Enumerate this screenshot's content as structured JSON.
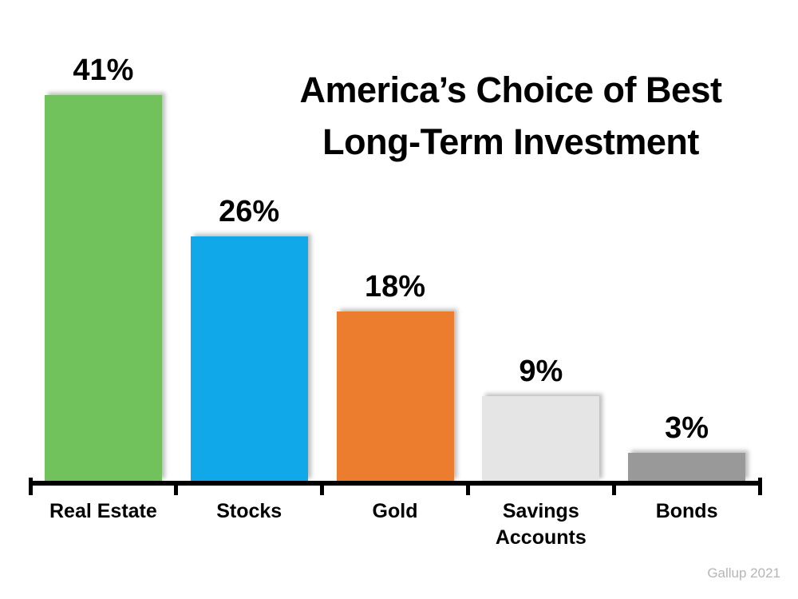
{
  "title": {
    "line1": "America’s Choice of Best",
    "line2": "Long-Term Investment"
  },
  "source": "Gallup 2021",
  "chart_data": {
    "type": "bar",
    "title": "America’s Choice of Best Long-Term Investment",
    "categories": [
      "Real Estate",
      "Stocks",
      "Gold",
      "Savings Accounts",
      "Bonds"
    ],
    "values": [
      41,
      26,
      18,
      9,
      3
    ],
    "value_labels": [
      "41%",
      "26%",
      "18%",
      "9%",
      "3%"
    ],
    "bar_colors": [
      "#71C15C",
      "#10A8E8",
      "#EC7D2F",
      "#E5E5E5",
      "#999999"
    ],
    "xlabel": "",
    "ylabel": "",
    "ylim": [
      0,
      45
    ],
    "grid": false,
    "legend": false,
    "value_label_position": "above-bars",
    "axis_color": "#000000",
    "source": "Gallup 2021"
  }
}
